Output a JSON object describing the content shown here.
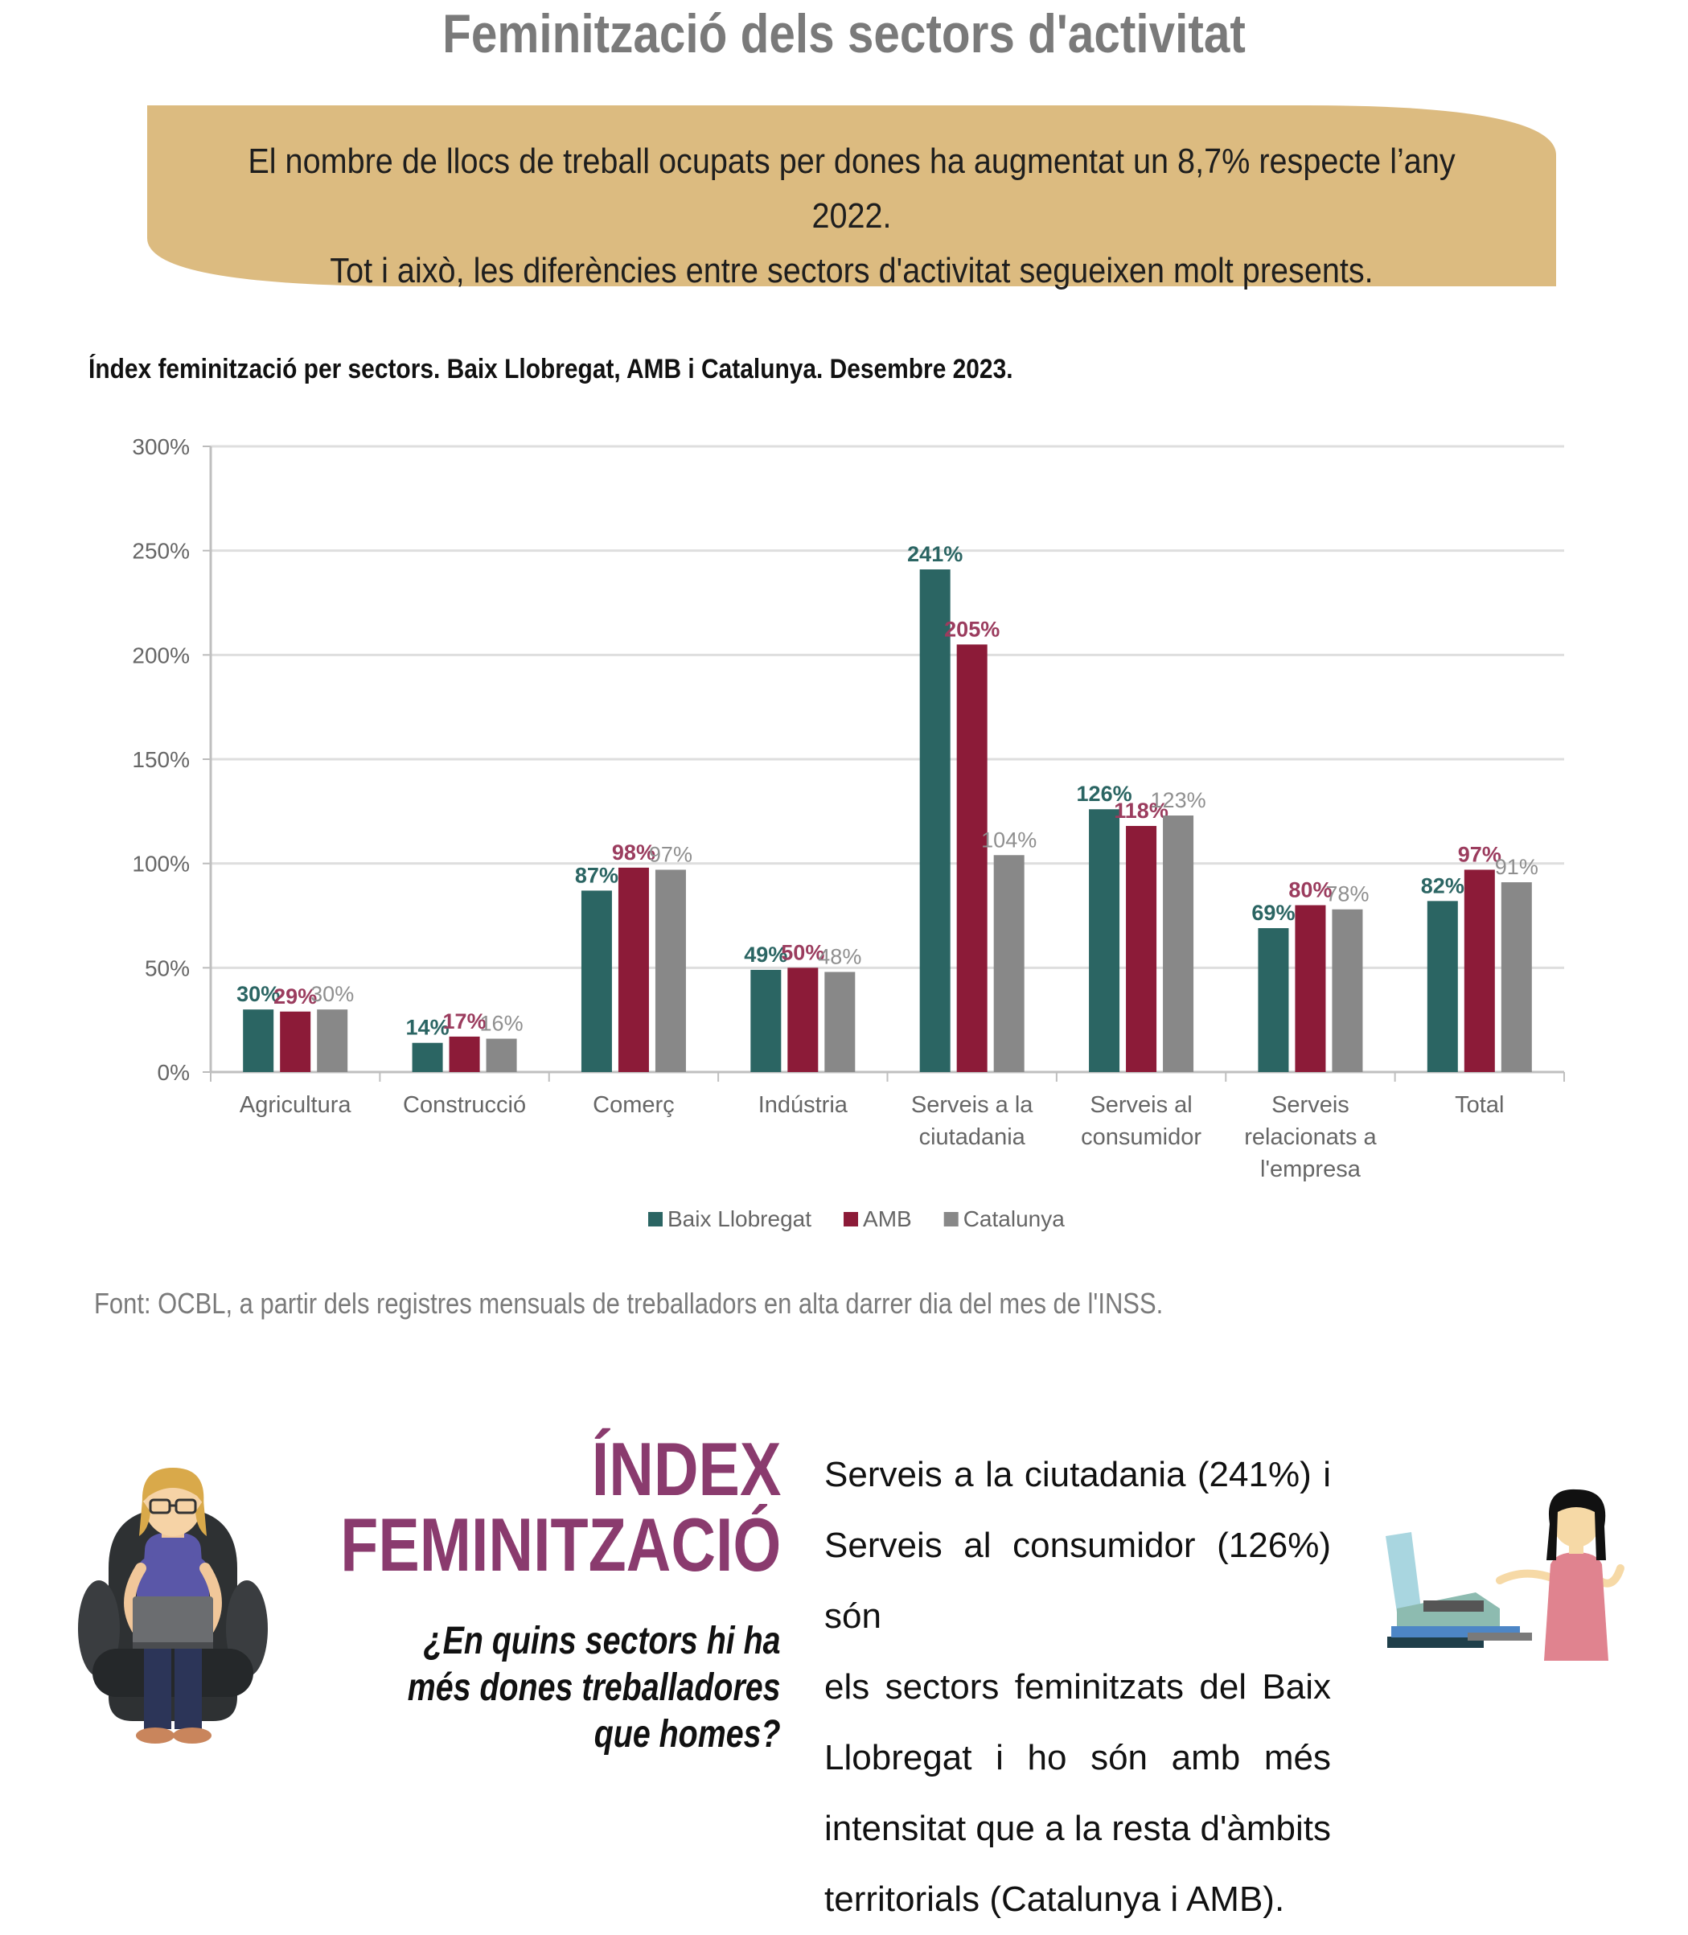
{
  "header": {
    "title": "Feminització dels sectors d'activitat"
  },
  "banner": {
    "line1": "El nombre de llocs de treball ocupats per dones ha augmentat un 8,7% respecte l’any 2022.",
    "line2": "Tot i això, les diferències entre sectors d'activitat segueixen molt presents.",
    "color": "#dcbb80"
  },
  "chart_data": {
    "type": "bar",
    "title": "Índex feminització per sectors. Baix Llobregat, AMB i Catalunya. Desembre 2023.",
    "categories": [
      [
        "Agricultura"
      ],
      [
        "Construcció"
      ],
      [
        "Comerç"
      ],
      [
        "Indústria"
      ],
      [
        "Serveis a la",
        "ciutadania"
      ],
      [
        "Serveis al",
        "consumidor"
      ],
      [
        "Serveis",
        "relacionats a",
        "l'empresa"
      ],
      [
        "Total"
      ]
    ],
    "series": [
      {
        "name": "Baix Llobregat",
        "color": "#2b6563",
        "label_color": "#2b6563",
        "values": [
          30,
          14,
          87,
          49,
          241,
          126,
          69,
          82
        ],
        "labels": [
          "30%",
          "14%",
          "87%",
          "49%",
          "241%",
          "126%",
          "69%",
          "82%"
        ]
      },
      {
        "name": "AMB",
        "color": "#8c1b38",
        "label_color": "#9b3c5e",
        "values": [
          29,
          17,
          98,
          50,
          205,
          118,
          80,
          97
        ],
        "labels": [
          "29%",
          "17%",
          "98%",
          "50%",
          "205%",
          "118%",
          "80%",
          "97%"
        ]
      },
      {
        "name": "Catalunya",
        "color": "#888888",
        "label_color": "#8f8f8f",
        "values": [
          30,
          16,
          97,
          48,
          104,
          123,
          78,
          91
        ],
        "labels": [
          "30%",
          "16%",
          "97%",
          "48%",
          "104%",
          "123%",
          "78%",
          "91%"
        ]
      }
    ],
    "yticks": [
      "0%",
      "50%",
      "100%",
      "150%",
      "200%",
      "250%",
      "300%"
    ],
    "ylim": [
      0,
      300
    ],
    "grid": true,
    "legend": "bottom-center"
  },
  "source": "Font: OCBL, a partir dels registres mensuals de treballadors en alta darrer dia del mes de l'INSS.",
  "index_section": {
    "title_line1": "ÍNDEX",
    "title_line2": "FEMINITZACIÓ",
    "question_line1": "¿En quins sectors hi ha",
    "question_line2": "més dones treballadores",
    "question_line3": "que homes?",
    "description_lines": [
      "Serveis a la ciutadania (241%) i",
      "Serveis al consumidor (126%) són",
      "els sectors feminitzats del Baix",
      "Llobregat i ho són amb més",
      "intensitat que a la resta d'àmbits",
      "territorials (Catalunya i AMB)."
    ],
    "accent_color": "#8a3b6e"
  }
}
